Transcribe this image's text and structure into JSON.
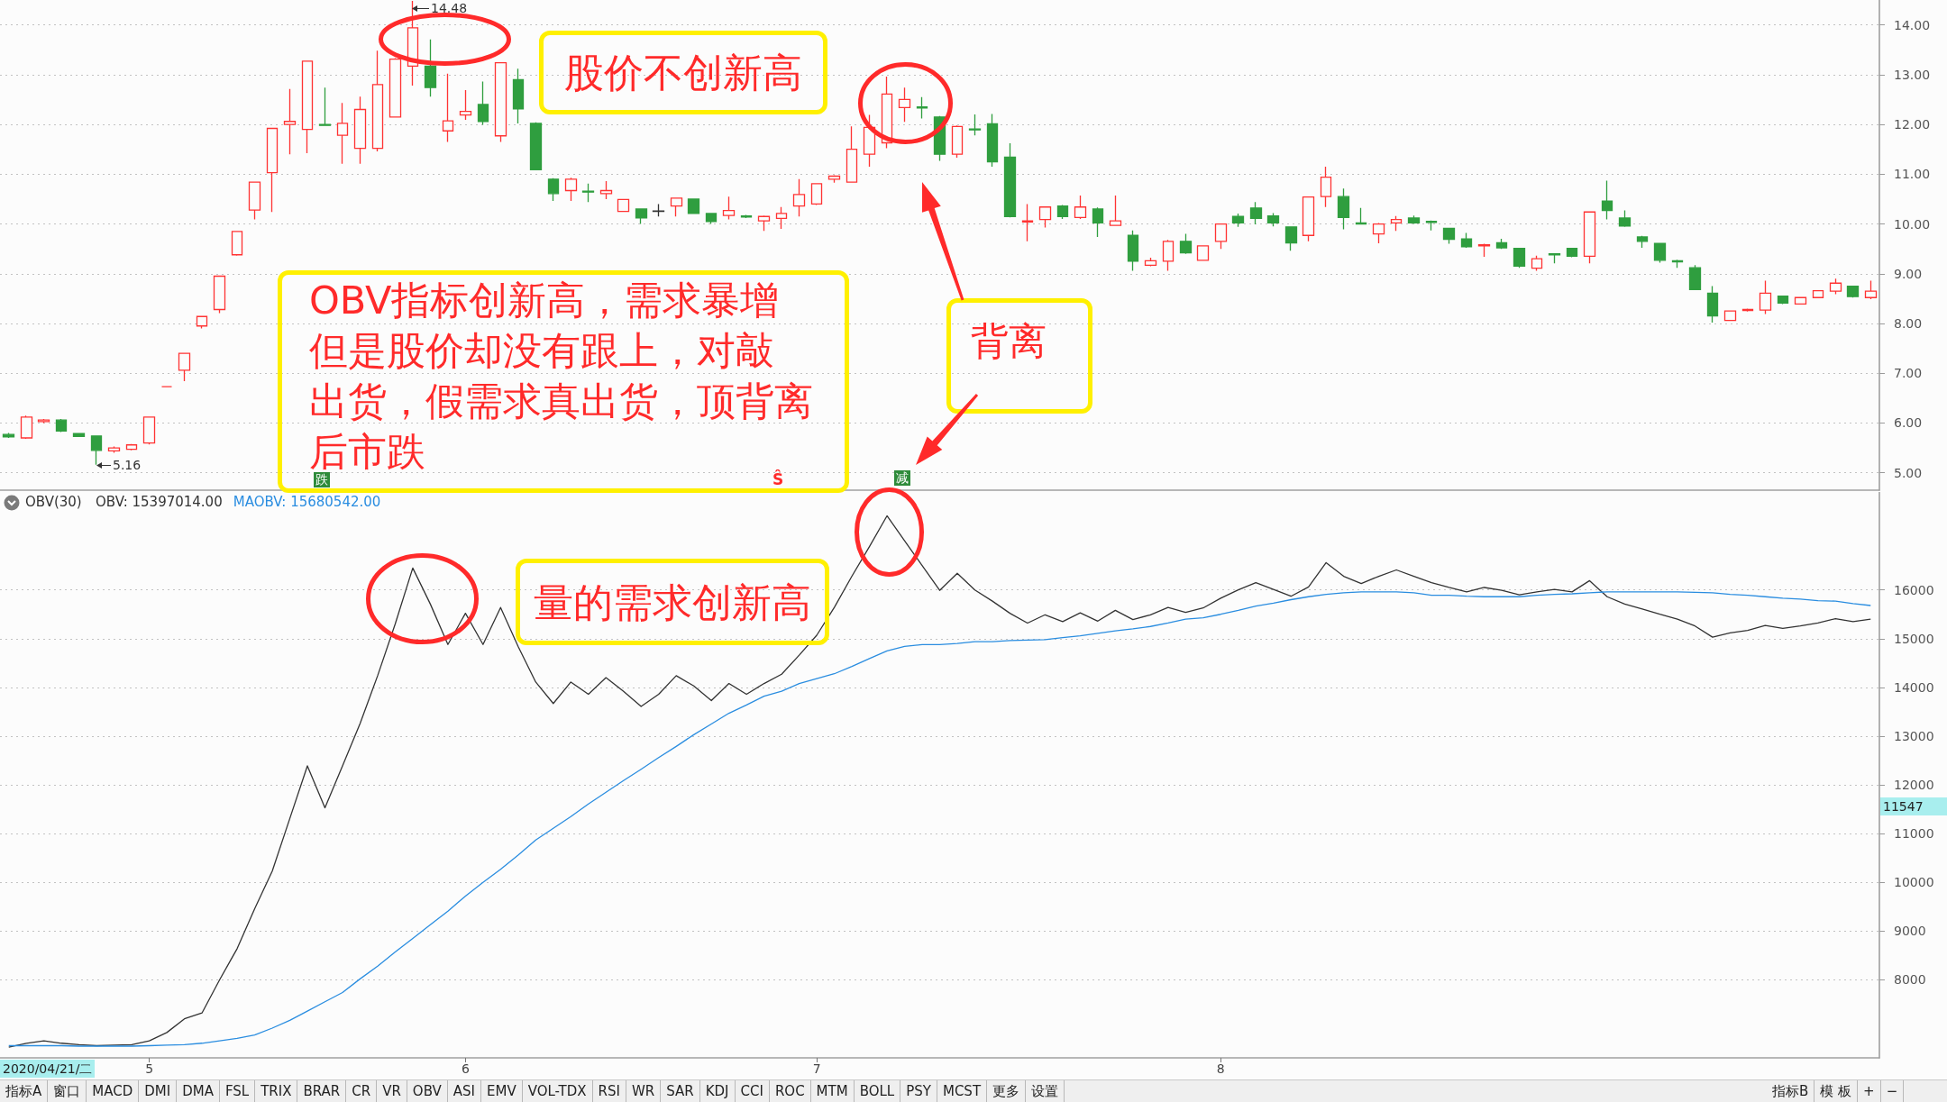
{
  "chart_data": [
    {
      "type": "candlestick",
      "categories": [
        null,
        null,
        null,
        null,
        null,
        null,
        null,
        null,
        "5",
        null,
        null,
        null,
        null,
        null,
        null,
        null,
        null,
        null,
        null,
        null,
        null,
        null,
        null,
        null,
        null,
        null,
        "6",
        null,
        null,
        null,
        null,
        null,
        null,
        null,
        null,
        null,
        null,
        null,
        null,
        null,
        null,
        null,
        null,
        null,
        null,
        null,
        "7",
        null,
        null,
        null,
        null,
        null,
        null,
        null,
        null,
        null,
        null,
        null,
        null,
        null,
        null,
        null,
        null,
        null,
        null,
        null,
        null,
        null,
        null,
        "8",
        null,
        null,
        null,
        null,
        null,
        null,
        null,
        null,
        null,
        null,
        null,
        null,
        null,
        null,
        null,
        null,
        null,
        null,
        null,
        null,
        null,
        null,
        null,
        null,
        null,
        null,
        null,
        null,
        null,
        null,
        null,
        null,
        null,
        null,
        null,
        null,
        null
      ],
      "ohlc": [
        [
          5.77,
          5.8,
          5.7,
          5.72
        ],
        [
          5.7,
          6.15,
          5.68,
          6.12
        ],
        [
          6.03,
          6.08,
          6.0,
          6.06
        ],
        [
          6.06,
          6.08,
          5.82,
          5.84
        ],
        [
          5.79,
          5.8,
          5.72,
          5.73
        ],
        [
          5.74,
          5.75,
          5.16,
          5.45
        ],
        [
          5.44,
          5.53,
          5.4,
          5.5
        ],
        [
          5.47,
          5.58,
          5.45,
          5.56
        ],
        [
          5.6,
          6.13,
          5.57,
          6.12
        ],
        [
          6.73,
          6.73,
          6.73,
          6.73
        ],
        [
          7.06,
          7.4,
          6.84,
          7.4
        ],
        [
          7.95,
          8.14,
          7.9,
          8.14
        ],
        [
          8.28,
          8.95,
          8.21,
          8.95
        ],
        [
          9.38,
          9.85,
          9.36,
          9.85
        ],
        [
          10.28,
          10.84,
          10.09,
          10.84
        ],
        [
          11.03,
          11.92,
          10.24,
          11.92
        ],
        [
          12.0,
          12.71,
          11.4,
          12.06
        ],
        [
          11.9,
          13.27,
          11.42,
          13.27
        ],
        [
          12.0,
          12.74,
          11.97,
          11.98
        ],
        [
          11.78,
          12.43,
          11.21,
          12.02
        ],
        [
          11.52,
          12.56,
          11.21,
          12.3
        ],
        [
          11.52,
          13.48,
          11.46,
          12.8
        ],
        [
          12.15,
          13.33,
          12.15,
          13.31
        ],
        [
          13.17,
          14.48,
          12.78,
          13.94
        ],
        [
          13.17,
          13.71,
          12.56,
          12.74
        ],
        [
          11.87,
          13.02,
          11.65,
          12.07
        ],
        [
          12.19,
          12.69,
          12.09,
          12.26
        ],
        [
          12.4,
          12.86,
          11.99,
          12.06
        ],
        [
          11.77,
          13.25,
          11.65,
          13.24
        ],
        [
          12.9,
          13.12,
          12.02,
          12.31
        ],
        [
          12.02,
          12.04,
          11.08,
          11.09
        ],
        [
          10.9,
          10.92,
          10.46,
          10.61
        ],
        [
          10.67,
          10.93,
          10.46,
          10.9
        ],
        [
          10.66,
          10.81,
          10.44,
          10.64
        ],
        [
          10.61,
          10.86,
          10.5,
          10.67
        ],
        [
          10.25,
          10.5,
          10.24,
          10.49
        ],
        [
          10.3,
          10.31,
          10.0,
          10.12
        ],
        [
          10.25,
          10.4,
          10.15,
          10.26
        ],
        [
          10.36,
          10.53,
          10.15,
          10.52
        ],
        [
          10.5,
          10.51,
          10.2,
          10.21
        ],
        [
          10.21,
          10.22,
          10.0,
          10.05
        ],
        [
          10.17,
          10.55,
          10.09,
          10.27
        ],
        [
          10.16,
          10.18,
          10.12,
          10.14
        ],
        [
          10.06,
          10.17,
          9.86,
          10.15
        ],
        [
          10.11,
          10.34,
          9.9,
          10.21
        ],
        [
          10.36,
          10.9,
          10.15,
          10.59
        ],
        [
          10.4,
          10.82,
          10.38,
          10.81
        ],
        [
          10.9,
          10.98,
          10.83,
          10.96
        ],
        [
          10.84,
          11.96,
          10.83,
          11.5
        ],
        [
          11.4,
          12.19,
          11.15,
          11.94
        ],
        [
          11.63,
          12.96,
          11.52,
          12.61
        ],
        [
          12.34,
          12.74,
          12.05,
          12.5
        ],
        [
          12.35,
          12.55,
          12.12,
          12.33
        ],
        [
          12.15,
          12.17,
          11.27,
          11.4
        ],
        [
          11.4,
          11.98,
          11.33,
          11.96
        ],
        [
          11.91,
          12.2,
          11.78,
          11.89
        ],
        [
          12.01,
          12.21,
          11.15,
          11.25
        ],
        [
          11.34,
          11.62,
          10.13,
          10.15
        ],
        [
          10.04,
          10.4,
          9.65,
          10.06
        ],
        [
          10.09,
          10.35,
          9.93,
          10.34
        ],
        [
          10.36,
          10.38,
          10.1,
          10.15
        ],
        [
          10.13,
          10.57,
          10.1,
          10.34
        ],
        [
          10.3,
          10.33,
          9.74,
          10.02
        ],
        [
          9.97,
          10.57,
          9.96,
          10.06
        ],
        [
          9.77,
          9.87,
          9.06,
          9.25
        ],
        [
          9.17,
          9.32,
          9.15,
          9.26
        ],
        [
          9.25,
          9.68,
          9.06,
          9.65
        ],
        [
          9.65,
          9.8,
          9.4,
          9.42
        ],
        [
          9.27,
          9.57,
          9.26,
          9.56
        ],
        [
          9.65,
          10.01,
          9.5,
          10.0
        ],
        [
          10.15,
          10.21,
          9.94,
          10.02
        ],
        [
          10.32,
          10.44,
          9.99,
          10.11
        ],
        [
          10.16,
          10.22,
          9.95,
          10.02
        ],
        [
          9.94,
          9.95,
          9.46,
          9.62
        ],
        [
          9.77,
          10.55,
          9.65,
          10.54
        ],
        [
          10.55,
          11.15,
          10.34,
          10.94
        ],
        [
          10.55,
          10.71,
          9.89,
          10.13
        ],
        [
          10.02,
          10.32,
          9.99,
          10.0
        ],
        [
          9.8,
          10.02,
          9.61,
          10.0
        ],
        [
          10.02,
          10.16,
          9.86,
          10.09
        ],
        [
          10.12,
          10.17,
          10.0,
          10.02
        ],
        [
          10.05,
          10.07,
          9.87,
          10.03
        ],
        [
          9.91,
          9.92,
          9.6,
          9.69
        ],
        [
          9.7,
          9.82,
          9.52,
          9.54
        ],
        [
          9.56,
          9.6,
          9.34,
          9.58
        ],
        [
          9.62,
          9.7,
          9.5,
          9.52
        ],
        [
          9.51,
          9.52,
          9.12,
          9.15
        ],
        [
          9.11,
          9.36,
          9.06,
          9.3
        ],
        [
          9.4,
          9.41,
          9.21,
          9.38
        ],
        [
          9.51,
          9.52,
          9.33,
          9.35
        ],
        [
          9.35,
          10.25,
          9.21,
          10.24
        ],
        [
          10.46,
          10.87,
          10.09,
          10.27
        ],
        [
          10.12,
          10.27,
          9.94,
          9.96
        ],
        [
          9.74,
          9.76,
          9.52,
          9.65
        ],
        [
          9.61,
          9.62,
          9.22,
          9.27
        ],
        [
          9.26,
          9.28,
          9.12,
          9.24
        ],
        [
          9.12,
          9.17,
          8.67,
          8.68
        ],
        [
          8.61,
          8.75,
          8.02,
          8.15
        ],
        [
          8.06,
          8.26,
          8.05,
          8.25
        ],
        [
          8.26,
          8.3,
          8.24,
          8.28
        ],
        [
          8.27,
          8.86,
          8.19,
          8.61
        ],
        [
          8.55,
          8.56,
          8.39,
          8.41
        ],
        [
          8.39,
          8.53,
          8.38,
          8.52
        ],
        [
          8.52,
          8.67,
          8.51,
          8.66
        ],
        [
          8.65,
          8.9,
          8.59,
          8.81
        ],
        [
          8.75,
          8.76,
          8.52,
          8.54
        ],
        [
          8.52,
          8.86,
          8.49,
          8.65
        ]
      ],
      "colors": [
        "#2f9e3f",
        "#ff3333",
        "#ff3333",
        "#2f9e3f",
        "#2f9e3f",
        "#2f9e3f",
        "#ff3333",
        "#ff3333",
        "#ff3333",
        "#ff3333",
        "#ff3333",
        "#ff3333",
        "#ff3333",
        "#ff3333",
        "#ff3333",
        "#ff3333",
        "#ff3333",
        "#ff3333",
        "#2f9e3f",
        "#ff3333",
        "#ff3333",
        "#ff3333",
        "#ff3333",
        "#ff3333",
        "#2f9e3f",
        "#ff3333",
        "#ff3333",
        "#2f9e3f",
        "#ff3333",
        "#2f9e3f",
        "#2f9e3f",
        "#2f9e3f",
        "#ff3333",
        "#2f9e3f",
        "#ff3333",
        "#ff3333",
        "#2f9e3f",
        "#333333",
        "#ff3333",
        "#2f9e3f",
        "#2f9e3f",
        "#ff3333",
        "#2f9e3f",
        "#ff3333",
        "#ff3333",
        "#ff3333",
        "#ff3333",
        "#ff3333",
        "#ff3333",
        "#ff3333",
        "#ff3333",
        "#ff3333",
        "#2f9e3f",
        "#2f9e3f",
        "#ff3333",
        "#2f9e3f",
        "#2f9e3f",
        "#2f9e3f",
        "#ff3333",
        "#ff3333",
        "#2f9e3f",
        "#ff3333",
        "#2f9e3f",
        "#ff3333",
        "#2f9e3f",
        "#ff3333",
        "#ff3333",
        "#2f9e3f",
        "#ff3333",
        "#ff3333",
        "#2f9e3f",
        "#2f9e3f",
        "#2f9e3f",
        "#2f9e3f",
        "#ff3333",
        "#ff3333",
        "#2f9e3f",
        "#2f9e3f",
        "#ff3333",
        "#ff3333",
        "#2f9e3f",
        "#2f9e3f",
        "#2f9e3f",
        "#2f9e3f",
        "#ff3333",
        "#2f9e3f",
        "#2f9e3f",
        "#ff3333",
        "#2f9e3f",
        "#2f9e3f",
        "#ff3333",
        "#2f9e3f",
        "#2f9e3f",
        "#2f9e3f",
        "#2f9e3f",
        "#2f9e3f",
        "#2f9e3f",
        "#2f9e3f",
        "#ff3333",
        "#ff3333",
        "#ff3333",
        "#2f9e3f",
        "#ff3333",
        "#ff3333",
        "#ff3333",
        "#2f9e3f",
        "#ff3333"
      ],
      "ylim": [
        4.65,
        14.5
      ],
      "yticks": [
        {
          "value": 5,
          "label": "5.00"
        },
        {
          "value": 6,
          "label": "6.00"
        },
        {
          "value": 7,
          "label": "7.00"
        },
        {
          "value": 8,
          "label": "8.00"
        },
        {
          "value": 9,
          "label": "9.00"
        },
        {
          "value": 10,
          "label": "10.00"
        },
        {
          "value": 11,
          "label": "11.00"
        },
        {
          "value": 12,
          "label": "12.00"
        },
        {
          "value": 13,
          "label": "13.00"
        },
        {
          "value": 14,
          "label": "14.00"
        }
      ],
      "grid": "y",
      "tick_labels": "y",
      "annotations": [
        "14.48",
        "5.16",
        "股价不创新高",
        "OBV指标创新高，需求暴增但是股价却没有跟上，对敲出货，假需求真出货，顶背离后市跌",
        "背离",
        "跌",
        "Ŝ",
        "减"
      ]
    },
    {
      "type": "line",
      "title": "OBV(30)",
      "categories": [
        null,
        null,
        null,
        null,
        null,
        null,
        null,
        null,
        "5",
        null,
        null,
        null,
        null,
        null,
        null,
        null,
        null,
        null,
        null,
        null,
        null,
        null,
        null,
        null,
        null,
        null,
        "6",
        null,
        null,
        null,
        null,
        null,
        null,
        null,
        null,
        null,
        null,
        null,
        null,
        null,
        null,
        null,
        null,
        null,
        null,
        null,
        "7",
        null,
        null,
        null,
        null,
        null,
        null,
        null,
        null,
        null,
        null,
        null,
        null,
        null,
        null,
        null,
        null,
        null,
        null,
        null,
        null,
        null,
        null,
        "8",
        null,
        null,
        null,
        null,
        null,
        null,
        null,
        null,
        null,
        null,
        null,
        null,
        null,
        null,
        null,
        null,
        null,
        null,
        null,
        null,
        null,
        null,
        null,
        null,
        null,
        null,
        null,
        null,
        null,
        null,
        null,
        null,
        null,
        null,
        null,
        null,
        null
      ],
      "series": [
        {
          "name": "OBV: 15397014.00",
          "color": "#333333",
          "values": [
            6620,
            6700,
            6750,
            6700,
            6670,
            6650,
            6660,
            6670,
            6750,
            6920,
            7200,
            7320,
            8000,
            8640,
            9460,
            10230,
            11310,
            12390,
            11530,
            12390,
            13260,
            14240,
            15300,
            16450,
            15710,
            14880,
            15520,
            14880,
            15640,
            14840,
            14110,
            13670,
            14110,
            13860,
            14200,
            13920,
            13610,
            13860,
            14240,
            14030,
            13730,
            14080,
            13860,
            14080,
            14270,
            14660,
            15070,
            15640,
            16280,
            16890,
            17520,
            17010,
            16500,
            15990,
            16340,
            16000,
            15770,
            15520,
            15320,
            15490,
            15350,
            15530,
            15360,
            15580,
            15390,
            15490,
            15640,
            15540,
            15630,
            15830,
            16000,
            16150,
            16010,
            15870,
            16060,
            16560,
            16280,
            16130,
            16280,
            16410,
            16280,
            16150,
            16050,
            15960,
            16050,
            15990,
            15900,
            15960,
            16010,
            15960,
            16190,
            15860,
            15710,
            15610,
            15500,
            15400,
            15260,
            15030,
            15120,
            15170,
            15270,
            15210,
            15260,
            15320,
            15410,
            15350,
            15400
          ]
        },
        {
          "name": "MAOBV: 15680542.00",
          "color": "#2a8de0",
          "values": [
            6650,
            6650,
            6650,
            6650,
            6640,
            6640,
            6640,
            6640,
            6650,
            6660,
            6670,
            6700,
            6750,
            6800,
            6870,
            7010,
            7170,
            7360,
            7550,
            7740,
            8020,
            8280,
            8570,
            8850,
            9130,
            9410,
            9720,
            10000,
            10270,
            10560,
            10870,
            11110,
            11350,
            11610,
            11850,
            12090,
            12320,
            12560,
            12790,
            13030,
            13250,
            13470,
            13640,
            13820,
            13920,
            14080,
            14180,
            14280,
            14430,
            14590,
            14750,
            14840,
            14880,
            14880,
            14900,
            14940,
            14940,
            14960,
            14970,
            14980,
            15020,
            15060,
            15110,
            15160,
            15200,
            15250,
            15320,
            15400,
            15430,
            15500,
            15580,
            15670,
            15730,
            15800,
            15860,
            15910,
            15940,
            15960,
            15960,
            15960,
            15940,
            15890,
            15890,
            15870,
            15860,
            15860,
            15860,
            15890,
            15910,
            15920,
            15940,
            15960,
            15960,
            15960,
            15960,
            15960,
            15950,
            15940,
            15910,
            15890,
            15860,
            15830,
            15810,
            15780,
            15770,
            15720,
            15680
          ]
        }
      ],
      "ylim": [
        6400,
        18000
      ],
      "yticks": [
        8000,
        9000,
        10000,
        11000,
        12000,
        13000,
        14000,
        15000,
        16000
      ],
      "grid": "y",
      "legend": "top left",
      "marker": "none",
      "annotations": [
        "量的需求创新高",
        "11547",
        "2020/04/21/二"
      ]
    },
    {
      "type": "other",
      "annotations": [
        "指标A",
        "窗口",
        "MACD",
        "DMI",
        "DMA",
        "FSL",
        "TRIX",
        "BRAR",
        "CR",
        "VR",
        "OBV",
        "ASI",
        "EMV",
        "VOL-TDX",
        "RSI",
        "WR",
        "SAR",
        "KDJ",
        "CCI",
        "ROC",
        "MTM",
        "BOLL",
        "PSY",
        "MCST",
        "更多",
        "设置"
      ]
    },
    {
      "type": "other",
      "annotations": [
        "指标B",
        "模 板",
        "+",
        "−"
      ]
    }
  ]
}
